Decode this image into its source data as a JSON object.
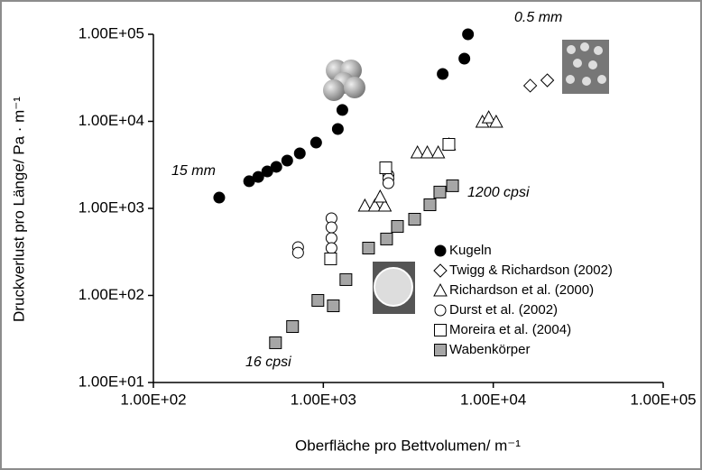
{
  "chart_data": {
    "type": "scatter",
    "x_label": "Oberfläche pro Bettvolumen/ m⁻¹",
    "y_label": "Druckverlust pro Länge/ Pa · m⁻¹",
    "log_x": true,
    "log_y": true,
    "xlim": [
      100,
      100000
    ],
    "ylim": [
      10,
      100000
    ],
    "xticks": [
      {
        "value": 100,
        "label": "1.00E+02"
      },
      {
        "value": 1000,
        "label": "1.00E+03"
      },
      {
        "value": 10000,
        "label": "1.00E+04"
      },
      {
        "value": 100000,
        "label": "1.00E+05"
      }
    ],
    "yticks": [
      {
        "value": 10,
        "label": "1.00E+01"
      },
      {
        "value": 100,
        "label": "1.00E+02"
      },
      {
        "value": 1000,
        "label": "1.00E+03"
      },
      {
        "value": 10000,
        "label": "1.00E+04"
      },
      {
        "value": 100000,
        "label": "1.00E+05"
      }
    ],
    "annotations": [
      "0.5 mm",
      "15 mm",
      "1200 cpsi",
      "16 cpsi"
    ],
    "series": [
      {
        "name": "Kugeln",
        "marker": "circle",
        "color": "#000000",
        "x": [
          244,
          366,
          414,
          468,
          529,
          613,
          727,
          907,
          1217,
          1294,
          5040,
          6760,
          7100
        ],
        "y": [
          1330,
          2050,
          2300,
          2660,
          3000,
          3540,
          4290,
          5700,
          8170,
          13500,
          35000,
          52500,
          100000
        ]
      },
      {
        "name": "Twigg & Richardson (2002)",
        "marker": "diamond",
        "color": "#ffffff",
        "x": [
          16500,
          20800
        ],
        "y": [
          25700,
          29600
        ]
      },
      {
        "name": "Richardson et al. (2000)",
        "marker": "triangle",
        "color": "#ffffff",
        "x": [
          1756,
          2010,
          2300,
          2160,
          3580,
          4090,
          4740,
          5490,
          8630,
          9400,
          10400
        ],
        "y": [
          1075,
          1075,
          1075,
          1365,
          4390,
          4390,
          4390,
          5440,
          9880,
          11100,
          9880
        ]
      },
      {
        "name": "Durst et al. (2002)",
        "marker": "circle",
        "color": "#ffffff",
        "x": [
          710,
          710,
          1117,
          1117,
          1117,
          1117,
          2415,
          2415,
          2415
        ],
        "y": [
          358,
          310,
          769,
          605,
          455,
          350,
          2420,
          2200,
          1950
        ]
      },
      {
        "name": "Moreira et al. (2004)",
        "marker": "square",
        "color": "#ffffff",
        "x": [
          1104,
          2330,
          5480
        ],
        "y": [
          263,
          2925,
          5440
        ]
      },
      {
        "name": "Wabenkörper",
        "marker": "square",
        "color": "#a6a6a6",
        "x": [
          523,
          659,
          929,
          1145,
          1358,
          1845,
          2356,
          2730,
          3445,
          4240,
          4850,
          5760
        ],
        "y": [
          28.6,
          43.9,
          87.7,
          76,
          152,
          350,
          445,
          621,
          751,
          1100,
          1540,
          1820
        ]
      }
    ]
  }
}
